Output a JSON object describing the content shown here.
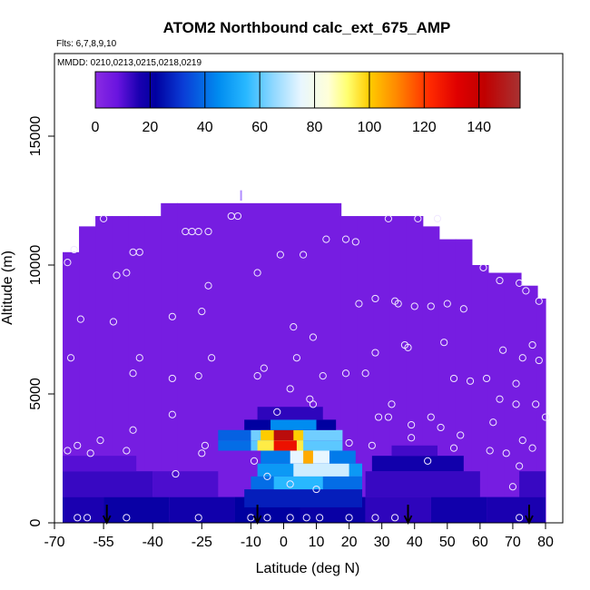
{
  "chart_data": {
    "type": "heatmap",
    "title": "ATOM2 Northbound calc_ext_675_AMP",
    "flights_text": "Flts: 6,7,8,9,10",
    "dates_text": "MMDD: 0210,0213,0215,0218,0219",
    "xlabel": "Latitude (deg N)",
    "ylabel": "Altitude (m)",
    "xlim": [
      -70,
      80
    ],
    "ylim": [
      0,
      17500
    ],
    "x_ticks": [
      -70,
      -55,
      -40,
      -25,
      -10,
      0,
      10,
      20,
      30,
      40,
      50,
      60,
      70,
      80
    ],
    "x_tick_labels": [
      "-70",
      "-55",
      "-40",
      "-25",
      "-10",
      "0",
      "10",
      "20",
      "30",
      "40",
      "50",
      "60",
      "70",
      "80"
    ],
    "y_ticks": [
      0,
      5000,
      10000,
      15000
    ],
    "y_tick_labels": [
      "0",
      "5000",
      "10000",
      "15000"
    ],
    "colorbar": {
      "range": [
        0,
        155
      ],
      "ticks": [
        0,
        20,
        40,
        60,
        80,
        100,
        120,
        140
      ],
      "tick_labels": [
        "0",
        "20",
        "40",
        "60",
        "80",
        "100",
        "120",
        "140"
      ],
      "stops": [
        {
          "value": 0,
          "color": "#8a2be2"
        },
        {
          "value": 8,
          "color": "#6a14e0"
        },
        {
          "value": 16,
          "color": "#1a00b0"
        },
        {
          "value": 22,
          "color": "#0000a0"
        },
        {
          "value": 32,
          "color": "#0a3cd6"
        },
        {
          "value": 45,
          "color": "#008cf0"
        },
        {
          "value": 55,
          "color": "#28b8ff"
        },
        {
          "value": 65,
          "color": "#90d8ff"
        },
        {
          "value": 75,
          "color": "#e8f6ff"
        },
        {
          "value": 85,
          "color": "#ffffd8"
        },
        {
          "value": 92,
          "color": "#ffff70"
        },
        {
          "value": 100,
          "color": "#ffcc00"
        },
        {
          "value": 110,
          "color": "#ff8800"
        },
        {
          "value": 122,
          "color": "#ff2a00"
        },
        {
          "value": 132,
          "color": "#e00000"
        },
        {
          "value": 142,
          "color": "#c00000"
        },
        {
          "value": 155,
          "color": "#a83232"
        }
      ]
    },
    "background_value": 5,
    "envelope": [
      {
        "lat_min": -67.5,
        "lat_max": -62.5,
        "alt_top": 10500
      },
      {
        "lat_min": -62.5,
        "lat_max": -57.5,
        "alt_top": 11500
      },
      {
        "lat_min": -57.5,
        "lat_max": -52.5,
        "alt_top": 11900
      },
      {
        "lat_min": -52.5,
        "lat_max": -47.5,
        "alt_top": 11900
      },
      {
        "lat_min": -47.5,
        "lat_max": -42.5,
        "alt_top": 11900
      },
      {
        "lat_min": -42.5,
        "lat_max": -37.5,
        "alt_top": 11900
      },
      {
        "lat_min": -37.5,
        "lat_max": -32.5,
        "alt_top": 12400
      },
      {
        "lat_min": -32.5,
        "lat_max": 17.5,
        "alt_top": 12400
      },
      {
        "lat_min": 17.5,
        "lat_max": 22.5,
        "alt_top": 11900
      },
      {
        "lat_min": 22.5,
        "lat_max": 27.5,
        "alt_top": 11900
      },
      {
        "lat_min": 27.5,
        "lat_max": 32.5,
        "alt_top": 11900
      },
      {
        "lat_min": 32.5,
        "lat_max": 37.5,
        "alt_top": 11900
      },
      {
        "lat_min": 37.5,
        "lat_max": 42.5,
        "alt_top": 11900
      },
      {
        "lat_min": 42.5,
        "lat_max": 47.5,
        "alt_top": 11500
      },
      {
        "lat_min": 47.5,
        "lat_max": 52.5,
        "alt_top": 11000
      },
      {
        "lat_min": 52.5,
        "lat_max": 57.5,
        "alt_top": 11000
      },
      {
        "lat_min": 57.5,
        "lat_max": 62.5,
        "alt_top": 10000
      },
      {
        "lat_min": 62.5,
        "lat_max": 67.5,
        "alt_top": 9700
      },
      {
        "lat_min": 67.5,
        "lat_max": 72.5,
        "alt_top": 9700
      },
      {
        "lat_min": 72.5,
        "lat_max": 77.5,
        "alt_top": 9200
      },
      {
        "lat_min": 77.5,
        "lat_max": 80.0,
        "alt_top": 8700
      }
    ],
    "cells": [
      {
        "lat_min": -67.5,
        "lat_max": -55,
        "alt_min": 0,
        "alt_max": 1000,
        "value": 16
      },
      {
        "lat_min": -55,
        "lat_max": -35,
        "alt_min": 0,
        "alt_max": 1000,
        "value": 20
      },
      {
        "lat_min": -35,
        "lat_max": -15,
        "alt_min": 0,
        "alt_max": 1000,
        "value": 18
      },
      {
        "lat_min": -15,
        "lat_max": 5,
        "alt_min": 0,
        "alt_max": 1000,
        "value": 22
      },
      {
        "lat_min": 5,
        "lat_max": 25,
        "alt_min": 0,
        "alt_max": 1000,
        "value": 20
      },
      {
        "lat_min": 25,
        "lat_max": 45,
        "alt_min": 0,
        "alt_max": 1000,
        "value": 14
      },
      {
        "lat_min": 45,
        "lat_max": 62,
        "alt_min": 0,
        "alt_max": 1000,
        "value": 18
      },
      {
        "lat_min": 62,
        "lat_max": 80,
        "alt_min": 0,
        "alt_max": 1000,
        "value": 16
      },
      {
        "lat_min": -67.5,
        "lat_max": -40,
        "alt_min": 1000,
        "alt_max": 2000,
        "value": 13
      },
      {
        "lat_min": -40,
        "lat_max": -20,
        "alt_min": 1000,
        "alt_max": 2000,
        "value": 11
      },
      {
        "lat_min": 25,
        "lat_max": 60,
        "alt_min": 1000,
        "alt_max": 2000,
        "value": 13
      },
      {
        "lat_min": 72,
        "lat_max": 80,
        "alt_min": 1000,
        "alt_max": 2000,
        "value": 13
      },
      {
        "lat_min": -67.5,
        "lat_max": -45,
        "alt_min": 2000,
        "alt_max": 2600,
        "value": 10
      },
      {
        "lat_min": 27,
        "lat_max": 55,
        "alt_min": 2000,
        "alt_max": 2600,
        "value": 18
      },
      {
        "lat_min": 33,
        "lat_max": 47,
        "alt_min": 2600,
        "alt_max": 3000,
        "value": 12
      },
      {
        "lat_min": -12,
        "lat_max": 24,
        "alt_min": 600,
        "alt_max": 1300,
        "value": 27
      },
      {
        "lat_min": -10,
        "lat_max": 24,
        "alt_min": 1300,
        "alt_max": 1800,
        "value": 40
      },
      {
        "lat_min": -3,
        "lat_max": 12,
        "alt_min": 1300,
        "alt_max": 1800,
        "value": 55
      },
      {
        "lat_min": -8,
        "lat_max": 24,
        "alt_min": 1800,
        "alt_max": 2300,
        "value": 48
      },
      {
        "lat_min": 3,
        "lat_max": 20,
        "alt_min": 1800,
        "alt_max": 2300,
        "value": 72
      },
      {
        "lat_min": -7,
        "lat_max": 22,
        "alt_min": 2300,
        "alt_max": 2800,
        "value": 42
      },
      {
        "lat_min": 2,
        "lat_max": 14,
        "alt_min": 2300,
        "alt_max": 2800,
        "value": 75
      },
      {
        "lat_min": 6,
        "lat_max": 9,
        "alt_min": 2300,
        "alt_max": 2800,
        "value": 105
      },
      {
        "lat_min": -20,
        "lat_max": -10,
        "alt_min": 2800,
        "alt_max": 3200,
        "value": 40
      },
      {
        "lat_min": -10,
        "lat_max": 18,
        "alt_min": 2800,
        "alt_max": 3200,
        "value": 60
      },
      {
        "lat_min": -8,
        "lat_max": 6,
        "alt_min": 2800,
        "alt_max": 3200,
        "value": 95
      },
      {
        "lat_min": -3,
        "lat_max": 4,
        "alt_min": 2800,
        "alt_max": 3200,
        "value": 128
      },
      {
        "lat_min": -20,
        "lat_max": -10,
        "alt_min": 3200,
        "alt_max": 3600,
        "value": 38
      },
      {
        "lat_min": -10,
        "lat_max": 18,
        "alt_min": 3200,
        "alt_max": 3600,
        "value": 62
      },
      {
        "lat_min": -7,
        "lat_max": 6,
        "alt_min": 3200,
        "alt_max": 3600,
        "value": 100
      },
      {
        "lat_min": -3,
        "lat_max": 3,
        "alt_min": 3200,
        "alt_max": 3600,
        "value": 145
      },
      {
        "lat_min": -12,
        "lat_max": 16,
        "alt_min": 3600,
        "alt_max": 4000,
        "value": 22
      },
      {
        "lat_min": -4,
        "lat_max": 10,
        "alt_min": 3600,
        "alt_max": 4000,
        "value": 45
      },
      {
        "lat_min": -8,
        "lat_max": 12,
        "alt_min": 4000,
        "alt_max": 4500,
        "value": 14
      }
    ],
    "observation_points": [
      {
        "lat": -55,
        "alt": 11800
      },
      {
        "lat": -30,
        "alt": 11300
      },
      {
        "lat": -28,
        "alt": 11300
      },
      {
        "lat": -26,
        "alt": 11300
      },
      {
        "lat": -23,
        "alt": 11300
      },
      {
        "lat": -16,
        "alt": 11900
      },
      {
        "lat": -14,
        "alt": 11900
      },
      {
        "lat": 13,
        "alt": 11000
      },
      {
        "lat": 19,
        "alt": 11000
      },
      {
        "lat": 22,
        "alt": 10900
      },
      {
        "lat": 32,
        "alt": 11800
      },
      {
        "lat": 41,
        "alt": 11800
      },
      {
        "lat": 47,
        "alt": 11800
      },
      {
        "lat": -66,
        "alt": 10100
      },
      {
        "lat": -64,
        "alt": 10600
      },
      {
        "lat": -46,
        "alt": 10500
      },
      {
        "lat": -44,
        "alt": 10500
      },
      {
        "lat": -1,
        "alt": 10400
      },
      {
        "lat": 6,
        "alt": 10400
      },
      {
        "lat": -8,
        "alt": 9700
      },
      {
        "lat": -51,
        "alt": 9600
      },
      {
        "lat": -48,
        "alt": 9700
      },
      {
        "lat": 61,
        "alt": 9900
      },
      {
        "lat": 66,
        "alt": 9400
      },
      {
        "lat": 72,
        "alt": 9300
      },
      {
        "lat": 74,
        "alt": 9000
      },
      {
        "lat": -23,
        "alt": 9200
      },
      {
        "lat": 28,
        "alt": 8700
      },
      {
        "lat": 34,
        "alt": 8600
      },
      {
        "lat": 40,
        "alt": 8400
      },
      {
        "lat": 45,
        "alt": 8400
      },
      {
        "lat": 23,
        "alt": 8500
      },
      {
        "lat": 35,
        "alt": 8500
      },
      {
        "lat": 50,
        "alt": 8500
      },
      {
        "lat": 55,
        "alt": 8300
      },
      {
        "lat": 78,
        "alt": 8600
      },
      {
        "lat": -62,
        "alt": 7900
      },
      {
        "lat": -52,
        "alt": 7800
      },
      {
        "lat": -34,
        "alt": 8000
      },
      {
        "lat": -25,
        "alt": 8200
      },
      {
        "lat": 3,
        "alt": 7600
      },
      {
        "lat": 9,
        "alt": 7200
      },
      {
        "lat": 49,
        "alt": 7000
      },
      {
        "lat": 37,
        "alt": 6900
      },
      {
        "lat": 38,
        "alt": 6800
      },
      {
        "lat": 28,
        "alt": 6600
      },
      {
        "lat": 67,
        "alt": 6700
      },
      {
        "lat": 76,
        "alt": 6900
      },
      {
        "lat": -65,
        "alt": 6400
      },
      {
        "lat": -44,
        "alt": 6400
      },
      {
        "lat": -22,
        "alt": 6400
      },
      {
        "lat": -6,
        "alt": 6000
      },
      {
        "lat": 4,
        "alt": 6400
      },
      {
        "lat": 73,
        "alt": 6400
      },
      {
        "lat": 78,
        "alt": 6300
      },
      {
        "lat": -46,
        "alt": 5800
      },
      {
        "lat": -34,
        "alt": 5600
      },
      {
        "lat": -26,
        "alt": 5700
      },
      {
        "lat": -8,
        "alt": 5700
      },
      {
        "lat": 12,
        "alt": 5700
      },
      {
        "lat": 19,
        "alt": 5800
      },
      {
        "lat": 25,
        "alt": 5800
      },
      {
        "lat": 52,
        "alt": 5600
      },
      {
        "lat": 57,
        "alt": 5500
      },
      {
        "lat": 62,
        "alt": 5600
      },
      {
        "lat": 71,
        "alt": 5400
      },
      {
        "lat": 2,
        "alt": 5200
      },
      {
        "lat": 66,
        "alt": 4800
      },
      {
        "lat": 71,
        "alt": 4600
      },
      {
        "lat": 77,
        "alt": 4600
      },
      {
        "lat": 8,
        "alt": 4800
      },
      {
        "lat": 9,
        "alt": 4600
      },
      {
        "lat": 33,
        "alt": 4600
      },
      {
        "lat": -34,
        "alt": 4200
      },
      {
        "lat": 29,
        "alt": 4100
      },
      {
        "lat": 32,
        "alt": 4100
      },
      {
        "lat": 45,
        "alt": 4100
      },
      {
        "lat": 64,
        "alt": 3900
      },
      {
        "lat": 80,
        "alt": 4100
      },
      {
        "lat": -46,
        "alt": 3600
      },
      {
        "lat": -2,
        "alt": 4300
      },
      {
        "lat": 39,
        "alt": 3800
      },
      {
        "lat": 48,
        "alt": 3700
      },
      {
        "lat": 54,
        "alt": 3400
      },
      {
        "lat": -56,
        "alt": 3200
      },
      {
        "lat": -63,
        "alt": 3000
      },
      {
        "lat": 73,
        "alt": 3200
      },
      {
        "lat": 39,
        "alt": 3300
      },
      {
        "lat": -24,
        "alt": 3000
      },
      {
        "lat": -48,
        "alt": 2800
      },
      {
        "lat": -66,
        "alt": 2800
      },
      {
        "lat": 52,
        "alt": 2900
      },
      {
        "lat": 63,
        "alt": 2800
      },
      {
        "lat": 68,
        "alt": 2700
      },
      {
        "lat": 76,
        "alt": 2900
      },
      {
        "lat": 20,
        "alt": 3100
      },
      {
        "lat": 27,
        "alt": 3000
      },
      {
        "lat": -59,
        "alt": 2700
      },
      {
        "lat": -25,
        "alt": 2700
      },
      {
        "lat": -9,
        "alt": 2400
      },
      {
        "lat": 44,
        "alt": 2400
      },
      {
        "lat": 72,
        "alt": 2200
      },
      {
        "lat": -33,
        "alt": 1900
      },
      {
        "lat": -5,
        "alt": 1800
      },
      {
        "lat": 2,
        "alt": 1500
      },
      {
        "lat": 10,
        "alt": 1300
      },
      {
        "lat": 70,
        "alt": 1400
      },
      {
        "lat": -63,
        "alt": 200
      },
      {
        "lat": -60,
        "alt": 200
      },
      {
        "lat": -48,
        "alt": 200
      },
      {
        "lat": -26,
        "alt": 200
      },
      {
        "lat": -10,
        "alt": 200
      },
      {
        "lat": -5,
        "alt": 200
      },
      {
        "lat": 2,
        "alt": 200
      },
      {
        "lat": 7,
        "alt": 200
      },
      {
        "lat": 11,
        "alt": 200
      },
      {
        "lat": 20,
        "alt": 200
      },
      {
        "lat": 28,
        "alt": 200
      },
      {
        "lat": 34,
        "alt": 200
      },
      {
        "lat": 72,
        "alt": 200
      }
    ],
    "arrows_lat": [
      -54,
      -8,
      38,
      75
    ],
    "flight_marker": {
      "lat": -13,
      "alt_min": 12500,
      "alt_max": 12900
    }
  }
}
